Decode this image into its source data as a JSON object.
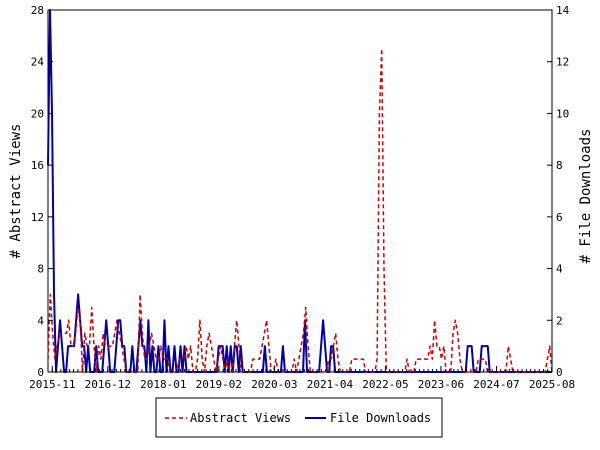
{
  "chart_data": {
    "type": "line",
    "title": "",
    "x_start": "2015-10",
    "x_end": "2025-08",
    "x_tick_labels": [
      "2015-11",
      "2016-12",
      "2018-01",
      "2019-02",
      "2020-03",
      "2021-04",
      "2022-05",
      "2023-06",
      "2024-07",
      "2025-08"
    ],
    "y_left": {
      "label": "# Abstract Views",
      "ticks": [
        0,
        4,
        8,
        12,
        16,
        20,
        24,
        28
      ],
      "range": [
        0,
        28
      ]
    },
    "y_right": {
      "label": "# File Downloads",
      "ticks": [
        0,
        2,
        4,
        6,
        8,
        10,
        12,
        14
      ],
      "range": [
        0,
        14
      ]
    },
    "grid": false,
    "legend_position": "bottom",
    "colors": {
      "abstract_views": "#cc0000",
      "file_downloads": "#0000aa",
      "axis": "#000000"
    },
    "series": [
      {
        "name": "Abstract Views",
        "axis": "left",
        "style": "dashed",
        "values": [
          1,
          6,
          3,
          1,
          2,
          3,
          3,
          3,
          3,
          4,
          2,
          2,
          3,
          5,
          4,
          0,
          3,
          2,
          2,
          5,
          2,
          0,
          2,
          1,
          3,
          2,
          2,
          2,
          2,
          3,
          4,
          3,
          2,
          1,
          0,
          0,
          0,
          0,
          0,
          0,
          6,
          3,
          1,
          1,
          2,
          3,
          2,
          1,
          1,
          2,
          1,
          1,
          1,
          0,
          0,
          0,
          0,
          1,
          1,
          1,
          2,
          1,
          2,
          0,
          0,
          1,
          4,
          1,
          0,
          2,
          3,
          2,
          1,
          0,
          1,
          2,
          1,
          0,
          1,
          0,
          0,
          2,
          4,
          2,
          0,
          0,
          0,
          0,
          0,
          1,
          1,
          1,
          1,
          2,
          3,
          4,
          2,
          0,
          0,
          1,
          0,
          0,
          0,
          0,
          0,
          0,
          0,
          1,
          0,
          1,
          2,
          3,
          5,
          2,
          0,
          0,
          0,
          0,
          0,
          0,
          0,
          0,
          1,
          1,
          2,
          3,
          1,
          0,
          0,
          0,
          0,
          0,
          1,
          1,
          1,
          1,
          1,
          1,
          0,
          0,
          0,
          0,
          0,
          1,
          20,
          25,
          8,
          0,
          0,
          0,
          0,
          0,
          0,
          0,
          0,
          0,
          1,
          0,
          0,
          0,
          1,
          1,
          1,
          1,
          1,
          1,
          2,
          1,
          4,
          2,
          2,
          1,
          2,
          0,
          0,
          0,
          3,
          4,
          3,
          1,
          0,
          0,
          0,
          0,
          0,
          0,
          0,
          1,
          1,
          1,
          1,
          0,
          0,
          0,
          0,
          0,
          0,
          0,
          0,
          0,
          2,
          1,
          0,
          0,
          0,
          0,
          0,
          0,
          0,
          0,
          0,
          0,
          0,
          0,
          0,
          0,
          0,
          1,
          2,
          0
        ]
      },
      {
        "name": "File Downloads",
        "axis": "right",
        "style": "solid",
        "values": [
          8,
          14,
          10,
          3,
          0,
          1,
          2,
          1,
          0,
          0,
          1,
          1,
          1,
          1,
          2,
          3,
          2,
          1,
          1,
          0,
          1,
          0,
          0,
          0,
          1,
          0,
          0,
          0,
          1,
          2,
          1,
          0,
          0,
          0,
          1,
          2,
          2,
          1,
          1,
          0,
          0,
          0,
          1,
          0,
          0,
          1,
          2,
          1,
          1,
          0,
          2,
          0,
          1,
          0,
          0,
          1,
          0,
          0,
          2,
          0,
          1,
          0,
          0,
          1,
          0,
          0,
          1,
          0,
          1,
          0,
          0,
          0,
          0,
          0,
          0,
          0,
          0,
          0,
          0,
          0,
          0,
          0,
          0,
          0,
          0,
          1,
          1,
          1,
          0,
          1,
          0,
          1,
          0,
          1,
          1,
          0,
          1,
          0,
          0,
          0,
          0,
          0,
          0,
          0,
          0,
          0,
          0,
          0,
          1,
          0,
          0,
          0,
          0,
          0,
          0,
          0,
          0,
          1,
          0,
          0,
          0,
          0,
          0,
          0,
          0,
          0,
          0,
          0,
          2,
          0,
          0,
          0,
          0,
          0,
          0,
          0,
          1,
          2,
          1,
          0,
          0,
          1,
          1,
          0,
          0,
          0,
          0,
          0,
          0,
          0,
          0,
          0,
          0,
          0,
          0,
          0,
          0,
          0,
          0,
          0,
          0,
          0,
          0,
          0,
          0,
          0,
          0,
          0,
          0,
          0,
          0,
          0,
          0,
          0,
          0,
          0,
          0,
          0,
          0,
          0,
          0,
          0,
          0,
          0,
          0,
          0,
          0,
          0,
          0,
          0,
          0,
          0,
          0,
          0,
          0,
          0,
          0,
          0,
          0,
          0,
          0,
          0,
          0,
          0,
          0,
          0,
          0,
          0,
          0,
          1,
          1,
          1,
          0,
          0,
          0,
          0,
          1,
          1,
          1,
          1,
          0,
          0,
          0,
          0,
          0,
          0,
          0,
          0,
          0,
          0,
          0,
          0,
          0,
          0,
          0,
          0,
          0,
          0,
          0,
          0,
          0,
          0,
          0,
          0,
          0,
          0,
          0,
          0,
          0,
          0,
          0,
          0
        ]
      }
    ]
  }
}
